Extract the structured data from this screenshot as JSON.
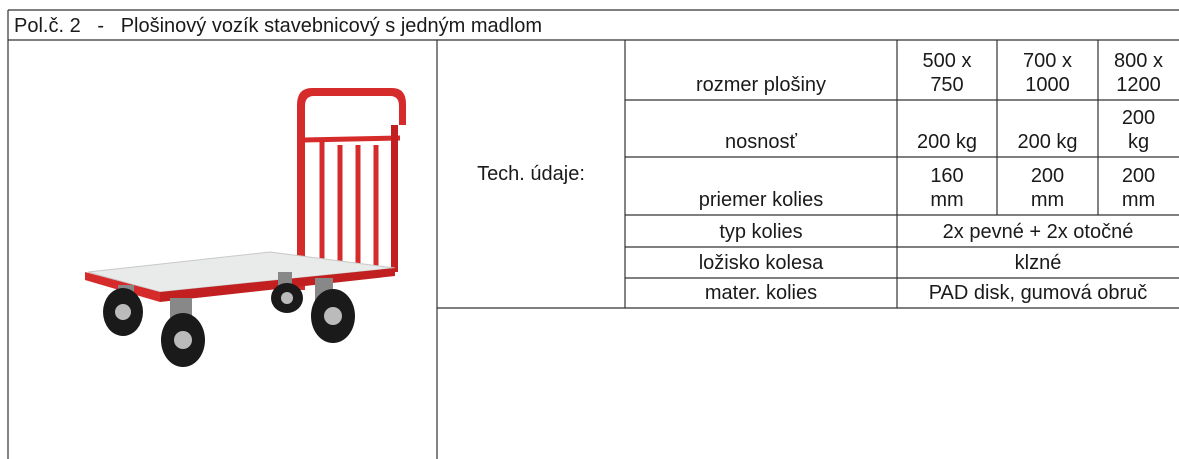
{
  "header": {
    "title": "Pol.č. 2   -   Plošinový vozík stavebnicový s jedným madlom"
  },
  "table": {
    "section_label": "Tech. údaje:",
    "rows": [
      [
        "rozmer plošiny",
        "500 x\n750",
        "700 x\n1000",
        "800 x\n1200"
      ],
      [
        "nosnosť",
        "200 kg",
        "200 kg",
        "200\nkg"
      ],
      [
        "priemer kolies",
        "160\nmm",
        "200\nmm",
        "200\nmm"
      ],
      [
        "typ kolies",
        "2x pevné + 2x otočné"
      ],
      [
        "ložisko kolesa",
        "klzné"
      ],
      [
        "mater. kolies",
        "PAD disk, gumová obruč"
      ]
    ]
  }
}
